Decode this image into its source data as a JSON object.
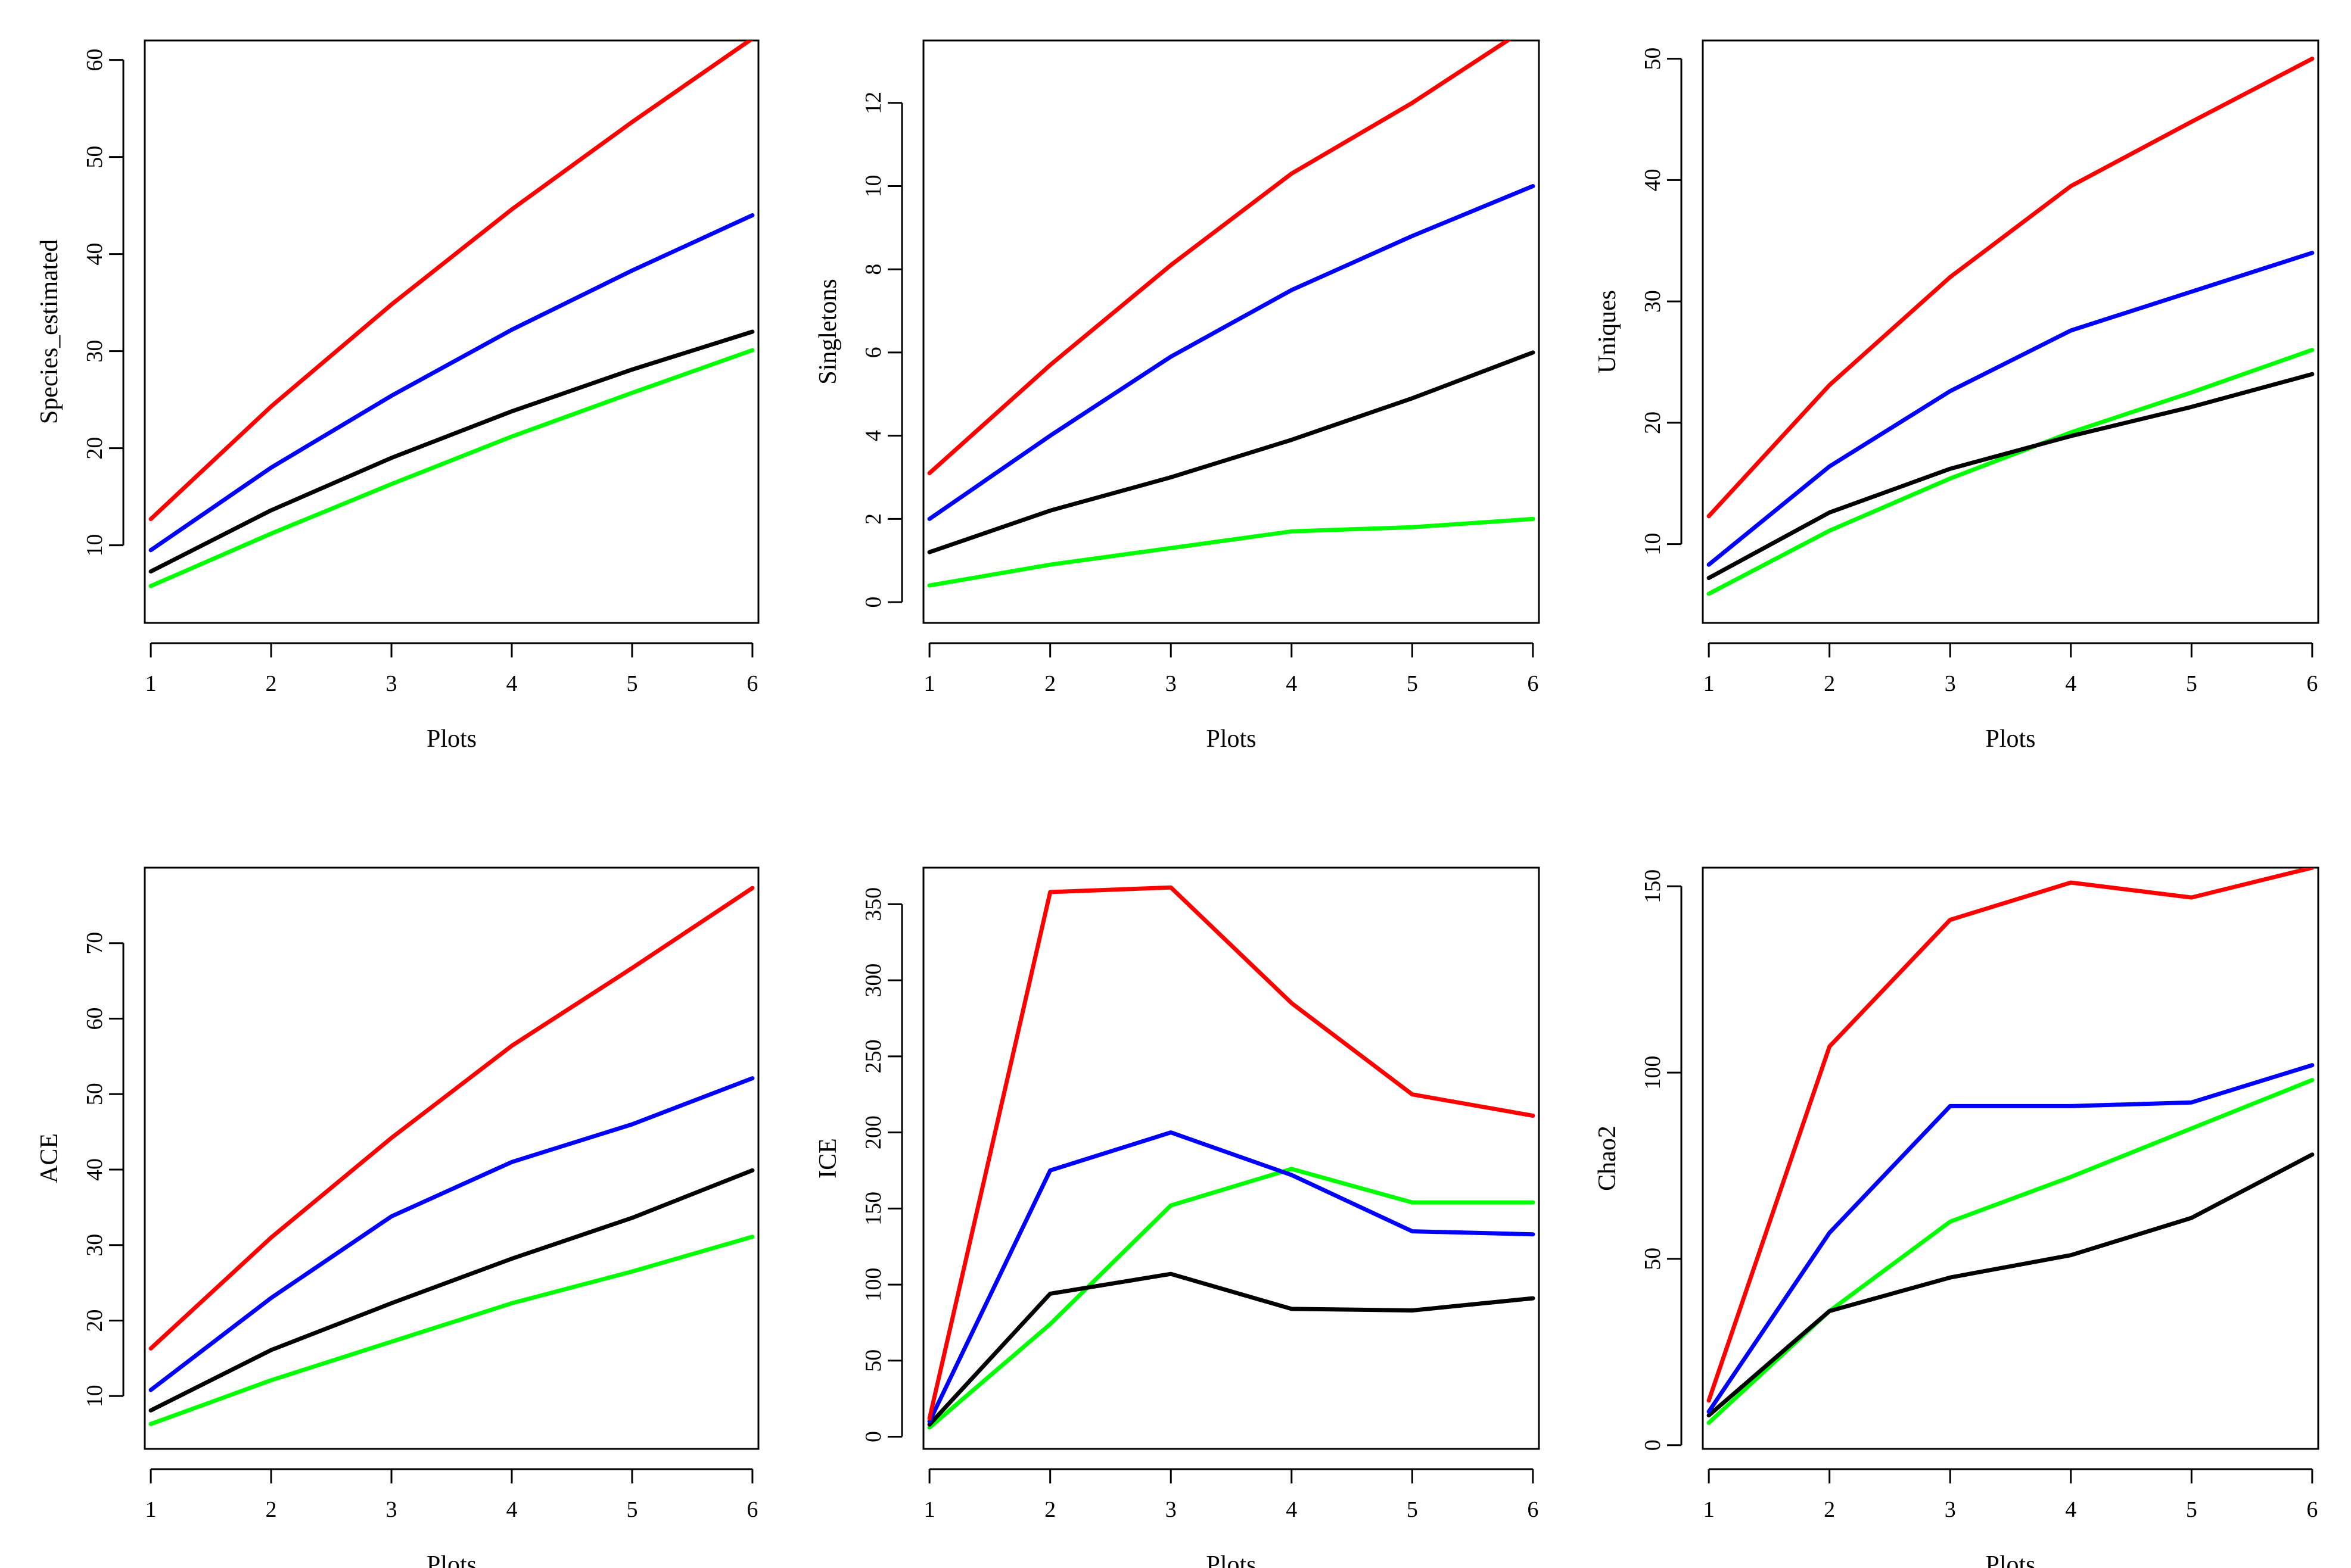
{
  "colors": {
    "upper": "#ff0000",
    "mid_upper": "#0000ff",
    "estimate": "#000000",
    "lower": "#00ff00"
  },
  "chart_data": [
    {
      "type": "line",
      "title": "",
      "xlabel": "Plots",
      "ylabel": "Species_estimated",
      "x": [
        1,
        2,
        3,
        4,
        5,
        6
      ],
      "xticks": [
        "1",
        "2",
        "3",
        "4",
        "5",
        "6"
      ],
      "yticks": [
        "10",
        "20",
        "30",
        "40",
        "50",
        "60"
      ],
      "xlim": [
        0.95,
        6.05
      ],
      "ylim": [
        2,
        62
      ],
      "series": [
        {
          "name": "red",
          "color": "#ff0000",
          "values": [
            12.7,
            24.3,
            34.8,
            44.6,
            53.6,
            62.2
          ]
        },
        {
          "name": "blue",
          "color": "#0000ff",
          "values": [
            9.5,
            18.0,
            25.4,
            32.2,
            38.3,
            44.0
          ]
        },
        {
          "name": "black",
          "color": "#000000",
          "values": [
            7.3,
            13.6,
            19.0,
            23.8,
            28.1,
            32.0
          ]
        },
        {
          "name": "green",
          "color": "#00ff00",
          "values": [
            5.8,
            11.2,
            16.3,
            21.2,
            25.7,
            30.1
          ]
        }
      ]
    },
    {
      "type": "line",
      "title": "",
      "xlabel": "Plots",
      "ylabel": "Singletons",
      "x": [
        1,
        2,
        3,
        4,
        5,
        6
      ],
      "xticks": [
        "1",
        "2",
        "3",
        "4",
        "5",
        "6"
      ],
      "yticks": [
        "0",
        "2",
        "4",
        "6",
        "8",
        "10",
        "12"
      ],
      "xlim": [
        0.95,
        6.05
      ],
      "ylim": [
        -0.5,
        13.5
      ],
      "series": [
        {
          "name": "red",
          "color": "#ff0000",
          "values": [
            3.1,
            5.7,
            8.1,
            10.3,
            12.0,
            13.9
          ]
        },
        {
          "name": "blue",
          "color": "#0000ff",
          "values": [
            2.0,
            4.0,
            5.9,
            7.5,
            8.8,
            10.0
          ]
        },
        {
          "name": "black",
          "color": "#000000",
          "values": [
            1.2,
            2.2,
            3.0,
            3.9,
            4.9,
            6.0
          ]
        },
        {
          "name": "green",
          "color": "#00ff00",
          "values": [
            0.4,
            0.9,
            1.3,
            1.7,
            1.8,
            2.0
          ]
        }
      ]
    },
    {
      "type": "line",
      "title": "",
      "xlabel": "Plots",
      "ylabel": "Uniques",
      "x": [
        1,
        2,
        3,
        4,
        5,
        6
      ],
      "xticks": [
        "1",
        "2",
        "3",
        "4",
        "5",
        "6"
      ],
      "yticks": [
        "10",
        "20",
        "30",
        "40",
        "50"
      ],
      "xlim": [
        0.95,
        6.05
      ],
      "ylim": [
        3.5,
        51.5
      ],
      "series": [
        {
          "name": "red",
          "color": "#ff0000",
          "values": [
            12.3,
            23.1,
            32.0,
            39.5,
            44.8,
            50.0
          ]
        },
        {
          "name": "blue",
          "color": "#0000ff",
          "values": [
            8.3,
            16.4,
            22.6,
            27.6,
            30.8,
            34.0
          ]
        },
        {
          "name": "black",
          "color": "#000000",
          "values": [
            7.2,
            12.6,
            16.2,
            18.9,
            21.3,
            24.0
          ]
        },
        {
          "name": "green",
          "color": "#00ff00",
          "values": [
            5.9,
            11.1,
            15.4,
            19.2,
            22.5,
            26.0
          ]
        }
      ]
    },
    {
      "type": "line",
      "title": "",
      "xlabel": "Plots",
      "ylabel": "ACE",
      "x": [
        1,
        2,
        3,
        4,
        5,
        6
      ],
      "xticks": [
        "1",
        "2",
        "3",
        "4",
        "5",
        "6"
      ],
      "yticks": [
        "10",
        "20",
        "30",
        "40",
        "50",
        "60",
        "70"
      ],
      "xlim": [
        0.95,
        6.05
      ],
      "ylim": [
        3,
        80
      ],
      "series": [
        {
          "name": "red",
          "color": "#ff0000",
          "values": [
            16.3,
            31.0,
            44.2,
            56.4,
            66.7,
            77.3
          ]
        },
        {
          "name": "blue",
          "color": "#0000ff",
          "values": [
            10.8,
            23.0,
            33.8,
            41.0,
            46.0,
            52.1
          ]
        },
        {
          "name": "black",
          "color": "#000000",
          "values": [
            8.1,
            16.1,
            22.3,
            28.2,
            33.6,
            39.9
          ]
        },
        {
          "name": "green",
          "color": "#00ff00",
          "values": [
            6.3,
            12.1,
            17.2,
            22.3,
            26.5,
            31.1
          ]
        }
      ]
    },
    {
      "type": "line",
      "title": "",
      "xlabel": "Plots",
      "ylabel": "ICE",
      "x": [
        1,
        2,
        3,
        4,
        5,
        6
      ],
      "xticks": [
        "1",
        "2",
        "3",
        "4",
        "5",
        "6"
      ],
      "yticks": [
        "0",
        "50",
        "100",
        "150",
        "200",
        "250",
        "300",
        "350"
      ],
      "xlim": [
        0.95,
        6.05
      ],
      "ylim": [
        -8,
        374
      ],
      "series": [
        {
          "name": "red",
          "color": "#ff0000",
          "values": [
            12,
            358,
            361,
            285,
            225,
            211
          ]
        },
        {
          "name": "blue",
          "color": "#0000ff",
          "values": [
            10,
            175,
            200,
            172,
            135,
            133
          ]
        },
        {
          "name": "black",
          "color": "#000000",
          "values": [
            8,
            94,
            107,
            84,
            83,
            91
          ]
        },
        {
          "name": "green",
          "color": "#00ff00",
          "values": [
            6,
            74,
            152,
            176,
            154,
            154
          ]
        }
      ]
    },
    {
      "type": "line",
      "title": "",
      "xlabel": "Plots",
      "ylabel": "Chao2",
      "x": [
        1,
        2,
        3,
        4,
        5,
        6
      ],
      "xticks": [
        "1",
        "2",
        "3",
        "4",
        "5",
        "6"
      ],
      "yticks": [
        "0",
        "50",
        "100",
        "150"
      ],
      "xlim": [
        0.95,
        6.05
      ],
      "ylim": [
        -1,
        155
      ],
      "series": [
        {
          "name": "red",
          "color": "#ff0000",
          "values": [
            12,
            107,
            141,
            151,
            147,
            155
          ]
        },
        {
          "name": "blue",
          "color": "#0000ff",
          "values": [
            9,
            57,
            91,
            91,
            92,
            102
          ]
        },
        {
          "name": "black",
          "color": "#000000",
          "values": [
            8,
            36,
            45,
            51,
            61,
            78
          ]
        },
        {
          "name": "green",
          "color": "#00ff00",
          "values": [
            6,
            36,
            60,
            72,
            85,
            98
          ]
        }
      ]
    }
  ]
}
